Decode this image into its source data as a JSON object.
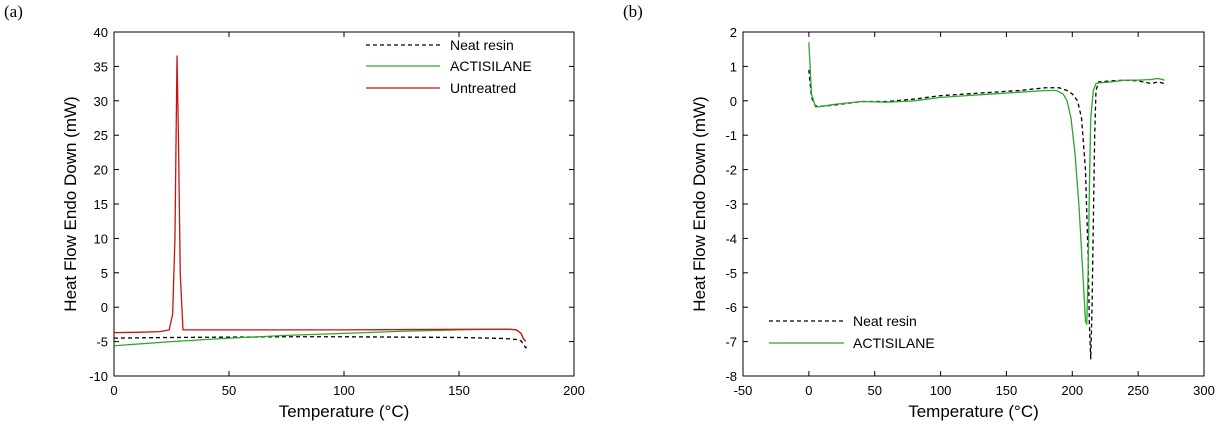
{
  "chart_data": [
    {
      "type": "line",
      "panel_label": "(a)",
      "xlabel": "Temperature (°C)",
      "ylabel": "Heat Flow Endo Down (mW)",
      "xlim": [
        0,
        200
      ],
      "ylim": [
        -10,
        40
      ],
      "xticks": [
        0,
        50,
        100,
        150,
        200
      ],
      "yticks": [
        -10,
        -5,
        0,
        5,
        10,
        15,
        20,
        25,
        30,
        35,
        40
      ],
      "grid": false,
      "legend_position": "top-right",
      "series": [
        {
          "name": "Neat resin",
          "color": "#000000",
          "dash": "dashed",
          "x": [
            0,
            25,
            50,
            75,
            100,
            125,
            150,
            170,
            175,
            177,
            178,
            179,
            180
          ],
          "y": [
            -4.5,
            -4.4,
            -4.35,
            -4.3,
            -4.3,
            -4.35,
            -4.4,
            -4.55,
            -4.7,
            -4.9,
            -5.4,
            -5.9,
            -5.6
          ]
        },
        {
          "name": "ACTISILANE",
          "color": "#2ca82c",
          "dash": "solid",
          "x": [
            0,
            25,
            50,
            75,
            100,
            125,
            150,
            165,
            172,
            175,
            177,
            178,
            179
          ],
          "y": [
            -5.6,
            -5.0,
            -4.5,
            -4.1,
            -3.8,
            -3.5,
            -3.3,
            -3.2,
            -3.2,
            -3.3,
            -3.8,
            -4.6,
            -5.0
          ]
        },
        {
          "name": "Untreatred",
          "color": "#cc1111",
          "dash": "solid",
          "x": [
            0,
            10,
            20,
            24,
            25.5,
            26.5,
            27,
            27.4,
            28,
            28.8,
            30,
            40,
            60,
            100,
            150,
            172,
            175,
            177,
            178,
            179
          ],
          "y": [
            -3.7,
            -3.65,
            -3.55,
            -3.3,
            -1.0,
            10,
            25,
            36.5,
            25,
            5,
            -3.3,
            -3.3,
            -3.3,
            -3.3,
            -3.2,
            -3.2,
            -3.3,
            -3.8,
            -4.6,
            -4.9
          ]
        }
      ]
    },
    {
      "type": "line",
      "panel_label": "(b)",
      "xlabel": "Temperature (°C)",
      "ylabel": "Heat Flow Endo Down (mW)",
      "xlim": [
        -50,
        300
      ],
      "ylim": [
        -8,
        2
      ],
      "xticks": [
        -50,
        0,
        50,
        100,
        150,
        200,
        250,
        300
      ],
      "yticks": [
        -8,
        -7,
        -6,
        -5,
        -4,
        -3,
        -2,
        -1,
        0,
        1,
        2
      ],
      "grid": false,
      "legend_position": "bottom-left",
      "series": [
        {
          "name": "Neat resin",
          "color": "#000000",
          "dash": "dashed",
          "x": [
            0,
            2,
            5,
            10,
            20,
            40,
            60,
            80,
            100,
            120,
            140,
            160,
            180,
            190,
            196,
            200,
            204,
            207,
            210,
            212,
            213,
            214,
            215,
            216,
            217,
            218,
            220,
            230,
            240,
            250,
            260,
            265,
            270
          ],
          "y": [
            0.9,
            0.1,
            -0.15,
            -0.16,
            -0.12,
            -0.02,
            -0.02,
            0.05,
            0.15,
            0.2,
            0.25,
            0.3,
            0.38,
            0.38,
            0.3,
            0.2,
            0.0,
            -0.5,
            -2.0,
            -4.5,
            -6.5,
            -7.5,
            -6.0,
            -3.5,
            -1.0,
            0.3,
            0.55,
            0.58,
            0.6,
            0.58,
            0.5,
            0.55,
            0.5
          ]
        },
        {
          "name": "ACTISILANE",
          "color": "#2ca82c",
          "dash": "solid",
          "x": [
            0,
            2,
            5,
            10,
            20,
            40,
            60,
            80,
            100,
            120,
            140,
            160,
            180,
            188,
            193,
            196,
            199,
            202,
            205,
            208,
            210,
            211,
            212,
            213,
            214,
            216,
            218,
            220,
            230,
            240,
            250,
            260,
            265,
            270
          ],
          "y": [
            1.7,
            0.2,
            -0.18,
            -0.16,
            -0.1,
            -0.02,
            -0.04,
            0.0,
            0.1,
            0.15,
            0.2,
            0.25,
            0.3,
            0.3,
            0.2,
            0.0,
            -0.5,
            -1.5,
            -3.0,
            -5.0,
            -6.4,
            -6.5,
            -5.0,
            -2.5,
            -0.5,
            0.3,
            0.5,
            0.52,
            0.55,
            0.6,
            0.6,
            0.62,
            0.65,
            0.6
          ]
        }
      ]
    }
  ]
}
